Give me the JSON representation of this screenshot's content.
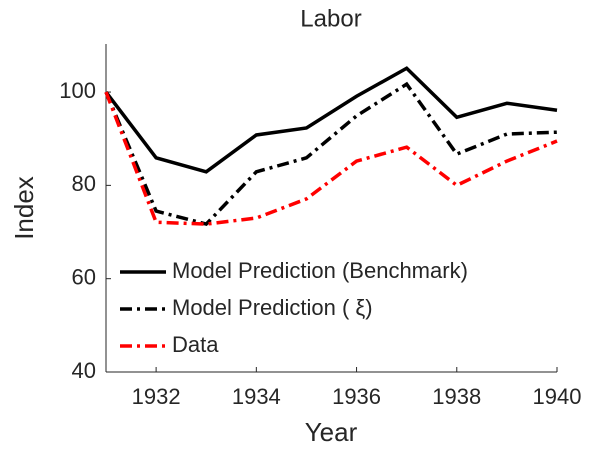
{
  "chart_data": {
    "type": "line",
    "title": "Labor",
    "xlabel": "Year",
    "ylabel": "Index",
    "x": [
      1931,
      1932,
      1933,
      1934,
      1935,
      1936,
      1937,
      1938,
      1939,
      1940
    ],
    "series": [
      {
        "name": "Model Prediction (Benchmark)",
        "color": "#000000",
        "dash": "solid",
        "values": [
          100,
          85.9,
          82.9,
          90.8,
          92.3,
          99.1,
          105.1,
          94.6,
          97.6,
          96.1
        ]
      },
      {
        "name": "Model Prediction ( ξ)",
        "color": "#000000",
        "dash": "dashdot",
        "values": [
          100,
          74.5,
          71.7,
          82.9,
          85.9,
          94.9,
          101.7,
          86.7,
          91,
          91.4
        ]
      },
      {
        "name": "Data",
        "color": "#ff0000",
        "dash": "dashdot",
        "values": [
          100,
          72.1,
          71.7,
          73,
          77.1,
          85.2,
          88.2,
          80,
          85.2,
          89.5
        ]
      }
    ],
    "xlim": [
      1931,
      1940
    ],
    "xticks": [
      1932,
      1934,
      1936,
      1938,
      1940
    ],
    "ylim": [
      40,
      110.3
    ],
    "yticks": [
      40,
      60,
      80,
      100
    ],
    "legend": "lower-left"
  }
}
